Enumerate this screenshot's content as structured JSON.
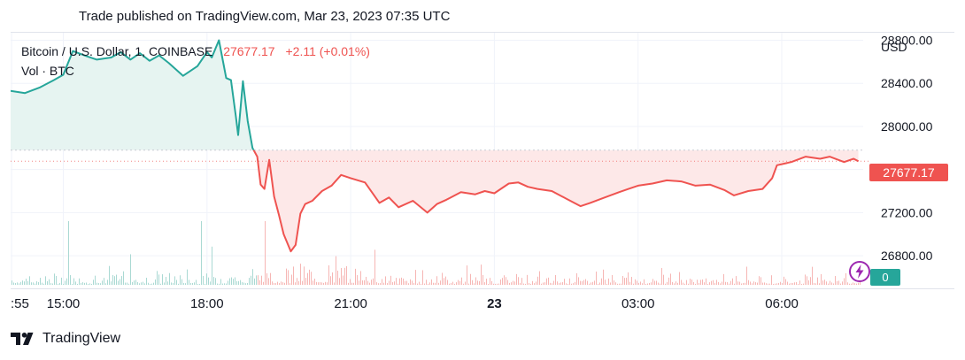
{
  "header": {
    "published": "Trade published on TradingView.com, Mar 23, 2023 07:35 UTC"
  },
  "legend": {
    "symbol": "Bitcoin / U.S. Dollar, 1, COINBASE",
    "last": "27677.17",
    "change": "+2.11 (+0.01%)",
    "volume_label": "Vol · BTC",
    "volume_value": "0"
  },
  "axis": {
    "currency": "USD"
  },
  "price_label": "27677.17",
  "brand": {
    "name": "TradingView"
  },
  "colors": {
    "up": "#26a69a",
    "down": "#ef5350",
    "up_fill": "#e6f4f1",
    "down_fill": "#fde8e8",
    "grid": "#f0f3fa"
  },
  "chart_data": {
    "type": "area",
    "title": "Bitcoin / U.S. Dollar, 1, COINBASE",
    "xlabel": "",
    "ylabel": "USD",
    "x_ticks": [
      {
        "label": ":55",
        "t": 13.92,
        "bold": false
      },
      {
        "label": "15:00",
        "t": 15.0,
        "bold": false
      },
      {
        "label": "18:00",
        "t": 18.0,
        "bold": false
      },
      {
        "label": "21:00",
        "t": 21.0,
        "bold": false
      },
      {
        "label": "23",
        "t": 24.0,
        "bold": true
      },
      {
        "label": "03:00",
        "t": 27.0,
        "bold": false
      },
      {
        "label": "06:00",
        "t": 30.0,
        "bold": false
      }
    ],
    "y_ticks": [
      26800,
      27200,
      27600,
      28000,
      28400,
      28800
    ],
    "y_tick_labels": [
      "26800.00",
      "27200.00",
      "27600.00",
      "28000.00",
      "28400.00",
      "28800.00"
    ],
    "xlim": [
      13.9,
      31.7
    ],
    "ylim": [
      26530,
      28870
    ],
    "baseline": 27780,
    "last_price": 27677.17,
    "grid": true,
    "series": [
      {
        "x": [
          13.9,
          14.2,
          14.5,
          14.8,
          15.0,
          15.2,
          15.5,
          15.7,
          16.0,
          16.2,
          16.4,
          16.6,
          16.8,
          17.0,
          17.2,
          17.5,
          17.8,
          18.0,
          18.1,
          18.25,
          18.4,
          18.5,
          18.6,
          18.65,
          18.75,
          18.85,
          18.95,
          19.05,
          19.12,
          19.2,
          19.3,
          19.4,
          19.5,
          19.6,
          19.75,
          19.85,
          19.95,
          20.05,
          20.2,
          20.4,
          20.6,
          20.8,
          21.0,
          21.3,
          21.6,
          21.8,
          22.0,
          22.3,
          22.6,
          22.8,
          23.0,
          23.3,
          23.6,
          23.8,
          24.0,
          24.3,
          24.5,
          24.7,
          24.9,
          25.2,
          25.5,
          25.8,
          26.0,
          26.3,
          26.6,
          26.8,
          27.0,
          27.3,
          27.6,
          27.9,
          28.2,
          28.5,
          28.8,
          29.0,
          29.3,
          29.6,
          29.8,
          29.9,
          30.0,
          30.2,
          30.5,
          30.8,
          31.0,
          31.3,
          31.5,
          31.6
        ],
        "y": [
          28330,
          28310,
          28360,
          28430,
          28480,
          28700,
          28650,
          28620,
          28640,
          28690,
          28620,
          28680,
          28610,
          28660,
          28590,
          28470,
          28560,
          28690,
          28640,
          28800,
          28450,
          28430,
          28100,
          27920,
          28420,
          28050,
          27800,
          27720,
          27460,
          27420,
          27690,
          27350,
          27180,
          27000,
          26840,
          26900,
          27190,
          27280,
          27310,
          27400,
          27450,
          27550,
          27520,
          27480,
          27290,
          27340,
          27250,
          27310,
          27200,
          27280,
          27320,
          27390,
          27370,
          27400,
          27380,
          27470,
          27480,
          27440,
          27420,
          27400,
          27330,
          27260,
          27290,
          27340,
          27390,
          27420,
          27450,
          27470,
          27500,
          27490,
          27450,
          27460,
          27410,
          27360,
          27400,
          27420,
          27520,
          27640,
          27650,
          27670,
          27720,
          27700,
          27720,
          27670,
          27700,
          27677
        ]
      }
    ],
    "volume": {
      "description": "1-minute volume histogram along the bottom of the pane",
      "max_value": 100,
      "spikes": [
        {
          "x": 15.1,
          "v": 100
        },
        {
          "x": 17.9,
          "v": 100
        },
        {
          "x": 19.2,
          "v": 100
        },
        {
          "x": 20.7,
          "v": 45
        },
        {
          "x": 21.5,
          "v": 55
        },
        {
          "x": 16.4,
          "v": 48
        },
        {
          "x": 18.1,
          "v": 60
        }
      ]
    }
  }
}
